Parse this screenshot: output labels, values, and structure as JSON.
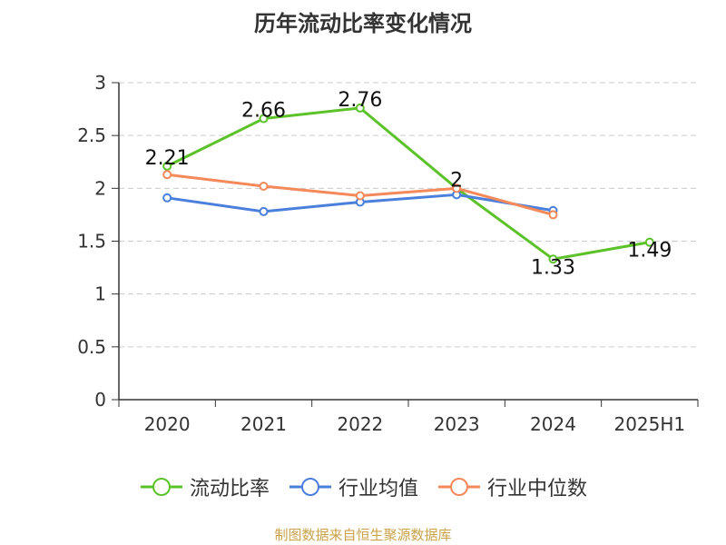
{
  "source_note": "制图数据来自恒生聚源数据库",
  "chart_data": {
    "type": "line",
    "title": "历年流动比率变化情况",
    "xlabel": "",
    "ylabel": "",
    "categories": [
      "2020",
      "2021",
      "2022",
      "2023",
      "2024",
      "2025H1"
    ],
    "ylim": [
      0,
      3
    ],
    "yticks": [
      "0",
      "0.5",
      "1",
      "1.5",
      "2",
      "2.5",
      "3"
    ],
    "grid": "horizontal dashed",
    "legend_position": "bottom",
    "series": [
      {
        "name": "流动比率",
        "color": "#5cc22a",
        "values": [
          2.21,
          2.66,
          2.76,
          2.0,
          1.33,
          1.49
        ],
        "labels": [
          "2.21",
          "2.66",
          "2.76",
          "2",
          "1.33",
          "1.49"
        ]
      },
      {
        "name": "行业均值",
        "color": "#4a7fdc",
        "values": [
          1.91,
          1.78,
          1.87,
          1.94,
          1.79,
          null
        ]
      },
      {
        "name": "行业中位数",
        "color": "#f5895a",
        "values": [
          2.13,
          2.02,
          1.93,
          2.0,
          1.75,
          null
        ]
      }
    ]
  }
}
